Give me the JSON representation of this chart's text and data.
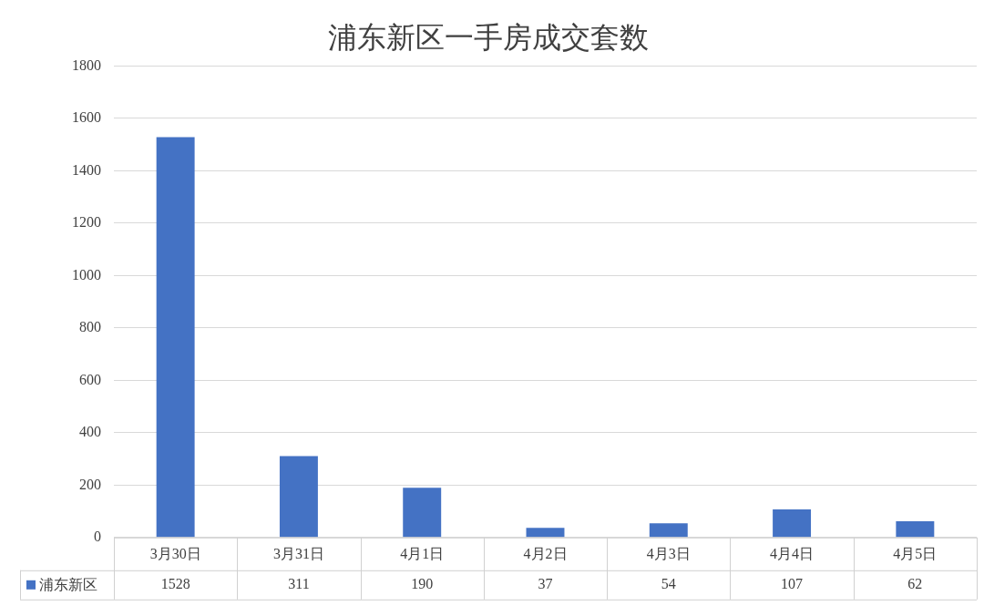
{
  "chart_data": {
    "type": "bar",
    "title": "浦东新区一手房成交套数",
    "categories": [
      "3月30日",
      "3月31日",
      "4月1日",
      "4月2日",
      "4月3日",
      "4月4日",
      "4月5日"
    ],
    "series": [
      {
        "name": "浦东新区",
        "color": "#4472c4",
        "values": [
          1528,
          311,
          190,
          37,
          54,
          107,
          62
        ]
      }
    ],
    "ylim": [
      0,
      1800
    ],
    "yticks": [
      0,
      200,
      400,
      600,
      800,
      1000,
      1200,
      1400,
      1600,
      1800
    ],
    "grid": "y",
    "legend": "bottom",
    "data_labels": true
  }
}
